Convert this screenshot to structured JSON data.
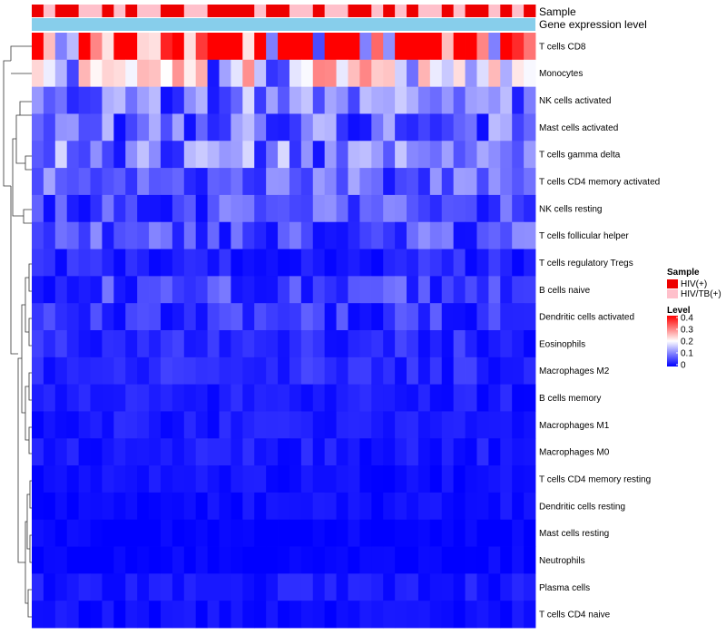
{
  "chart_data": {
    "type": "heatmap",
    "annotation_tracks": [
      "Sample",
      "Gene expression level"
    ],
    "rows": [
      "T cells CD8",
      "Monocytes",
      "NK cells activated",
      "Mast cells activated",
      "T cells gamma delta",
      "T cells CD4 memory activated",
      "NK cells resting",
      "T cells follicular helper",
      "T cells regulatory  Tregs",
      "B cells naive",
      "Dendritic cells activated",
      "Eosinophils",
      "Macrophages M2",
      "B cells memory",
      "Macrophages M1",
      "Macrophages M0",
      "T cells CD4 memory resting",
      "Dendritic cells resting",
      "Mast cells resting",
      "Neutrophils",
      "Plasma cells",
      "T cells CD4 naive"
    ],
    "n_samples": 43,
    "row_typical_level": [
      0.33,
      0.16,
      0.09,
      0.08,
      0.09,
      0.07,
      0.06,
      0.06,
      0.03,
      0.05,
      0.04,
      0.03,
      0.03,
      0.02,
      0.02,
      0.02,
      0.01,
      0.01,
      0.0,
      0.0,
      0.02,
      0.01
    ],
    "sample_groups": [
      "HIV(+)",
      "HIV/TB(+)",
      "HIV(+)",
      "HIV(+)",
      "HIV/TB(+)",
      "HIV/TB(+)",
      "HIV(+)",
      "HIV/TB(+)",
      "HIV(+)",
      "HIV/TB(+)",
      "HIV/TB(+)",
      "HIV(+)",
      "HIV(+)",
      "HIV/TB(+)",
      "HIV/TB(+)",
      "HIV(+)",
      "HIV(+)",
      "HIV(+)",
      "HIV(+)",
      "HIV/TB(+)",
      "HIV(+)",
      "HIV(+)",
      "HIV/TB(+)",
      "HIV/TB(+)",
      "HIV(+)",
      "HIV/TB(+)",
      "HIV/TB(+)",
      "HIV(+)",
      "HIV(+)",
      "HIV/TB(+)",
      "HIV(+)",
      "HIV/TB(+)",
      "HIV(+)",
      "HIV/TB(+)",
      "HIV/TB(+)",
      "HIV(+)",
      "HIV/TB(+)",
      "HIV(+)",
      "HIV(+)",
      "HIV/TB(+)",
      "HIV(+)",
      "HIV/TB(+)",
      "HIV(+)"
    ],
    "legend": {
      "sample_title": "Sample",
      "sample_entries": [
        {
          "label": "HIV(+)",
          "color": "#ee0000"
        },
        {
          "label": "HIV/TB(+)",
          "color": "#ffc0cb"
        }
      ],
      "level_title": "Level",
      "level_ticks": [
        "0.4",
        "0.3",
        "0.2",
        "0.1",
        "0"
      ],
      "level_range": [
        0,
        0.4
      ]
    },
    "colors": {
      "low": "#0000ff",
      "mid": "#ffffff",
      "high": "#ff0000",
      "expression_track": "#87ceeb"
    }
  }
}
